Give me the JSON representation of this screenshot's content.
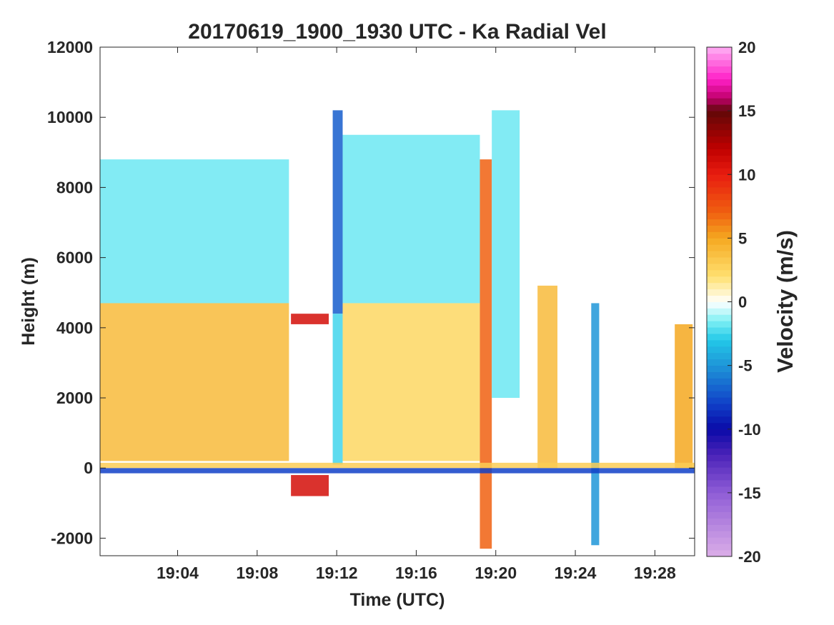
{
  "chart_data": {
    "type": "heatmap",
    "title": "20170619_1900_1930 UTC - Ka Radial Vel",
    "xlabel": "Time (UTC)",
    "ylabel": "Height (m)",
    "colorbar_label": "Velocity (m/s)",
    "xlim_minutes": [
      0.1,
      30.0
    ],
    "x_ticks": [
      {
        "minutes": 4,
        "label": "19:04"
      },
      {
        "minutes": 8,
        "label": "19:08"
      },
      {
        "minutes": 12,
        "label": "19:12"
      },
      {
        "minutes": 16,
        "label": "19:16"
      },
      {
        "minutes": 20,
        "label": "19:20"
      },
      {
        "minutes": 24,
        "label": "19:24"
      },
      {
        "minutes": 28,
        "label": "19:28"
      }
    ],
    "ylim": [
      -2500,
      12000
    ],
    "y_ticks": [
      {
        "value": 12000,
        "label": "12000"
      },
      {
        "value": 10000,
        "label": "10000"
      },
      {
        "value": 8000,
        "label": "8000"
      },
      {
        "value": 6000,
        "label": "6000"
      },
      {
        "value": 4000,
        "label": "4000"
      },
      {
        "value": 2000,
        "label": "2000"
      },
      {
        "value": 0,
        "label": "0"
      },
      {
        "value": -2000,
        "label": "-2000"
      }
    ],
    "clim": [
      -20,
      20
    ],
    "colorbar_ticks": [
      {
        "value": 20,
        "label": "20"
      },
      {
        "value": 15,
        "label": "15"
      },
      {
        "value": 10,
        "label": "10"
      },
      {
        "value": 5,
        "label": "5"
      },
      {
        "value": 0,
        "label": "0"
      },
      {
        "value": -5,
        "label": "-5"
      },
      {
        "value": -10,
        "label": "-10"
      },
      {
        "value": -15,
        "label": "-15"
      },
      {
        "value": -20,
        "label": "-20"
      }
    ],
    "colormap_stops": [
      {
        "value": -20,
        "color": "#dcaee8"
      },
      {
        "value": -15,
        "color": "#8f5dd6"
      },
      {
        "value": -12,
        "color": "#4a22b8"
      },
      {
        "value": -10,
        "color": "#0a0aa8"
      },
      {
        "value": -8,
        "color": "#1040c8"
      },
      {
        "value": -5,
        "color": "#1e96d8"
      },
      {
        "value": -3,
        "color": "#22c8e8"
      },
      {
        "value": -1.5,
        "color": "#7ef0f4"
      },
      {
        "value": -0.5,
        "color": "#d8fbfc"
      },
      {
        "value": 0,
        "color": "#ffffff"
      },
      {
        "value": 0.5,
        "color": "#fff8d8"
      },
      {
        "value": 2,
        "color": "#ffe070"
      },
      {
        "value": 5,
        "color": "#f5a820"
      },
      {
        "value": 7,
        "color": "#f06010"
      },
      {
        "value": 10,
        "color": "#e81c10"
      },
      {
        "value": 12,
        "color": "#c00000"
      },
      {
        "value": 15,
        "color": "#600808"
      },
      {
        "value": 16,
        "color": "#c0006c"
      },
      {
        "value": 17.5,
        "color": "#ff20c8"
      },
      {
        "value": 20,
        "color": "#ffb0f4"
      }
    ],
    "features": [
      {
        "t0": 0.1,
        "t1": 9.6,
        "z0": 4700,
        "z1": 8800,
        "v": -1.8
      },
      {
        "t0": 0.1,
        "t1": 9.6,
        "z0": 200,
        "z1": 4700,
        "v": 4
      },
      {
        "t0": 9.7,
        "t1": 11.6,
        "z0": 4100,
        "z1": 4400,
        "v": 11
      },
      {
        "t0": 9.7,
        "t1": 11.6,
        "z0": -800,
        "z1": -200,
        "v": 11
      },
      {
        "t0": 11.8,
        "t1": 12.3,
        "z0": 4400,
        "z1": 10200,
        "v": -7
      },
      {
        "t0": 11.8,
        "t1": 12.3,
        "z0": 100,
        "z1": 4400,
        "v": -2.5
      },
      {
        "t0": 12.3,
        "t1": 19.2,
        "z0": 4700,
        "z1": 9500,
        "v": -1.8
      },
      {
        "t0": 12.3,
        "t1": 19.2,
        "z0": 200,
        "z1": 4700,
        "v": 2.5
      },
      {
        "t0": 19.2,
        "t1": 19.8,
        "z0": -2300,
        "z1": 8800,
        "v": 7
      },
      {
        "t0": 19.8,
        "t1": 21.2,
        "z0": 2000,
        "z1": 10200,
        "v": -1.8
      },
      {
        "t0": 22.1,
        "t1": 23.1,
        "z0": 0,
        "z1": 5200,
        "v": 4
      },
      {
        "t0": 24.8,
        "t1": 25.2,
        "z0": -2200,
        "z1": 4700,
        "v": -5
      },
      {
        "t0": 29.0,
        "t1": 29.9,
        "z0": 0,
        "z1": 4100,
        "v": 5
      },
      {
        "t0": 0.1,
        "t1": 30.0,
        "z0": -150,
        "z1": 0,
        "v": -8
      },
      {
        "t0": 0.1,
        "t1": 30.0,
        "z0": 0,
        "z1": 150,
        "v": 3
      }
    ]
  }
}
